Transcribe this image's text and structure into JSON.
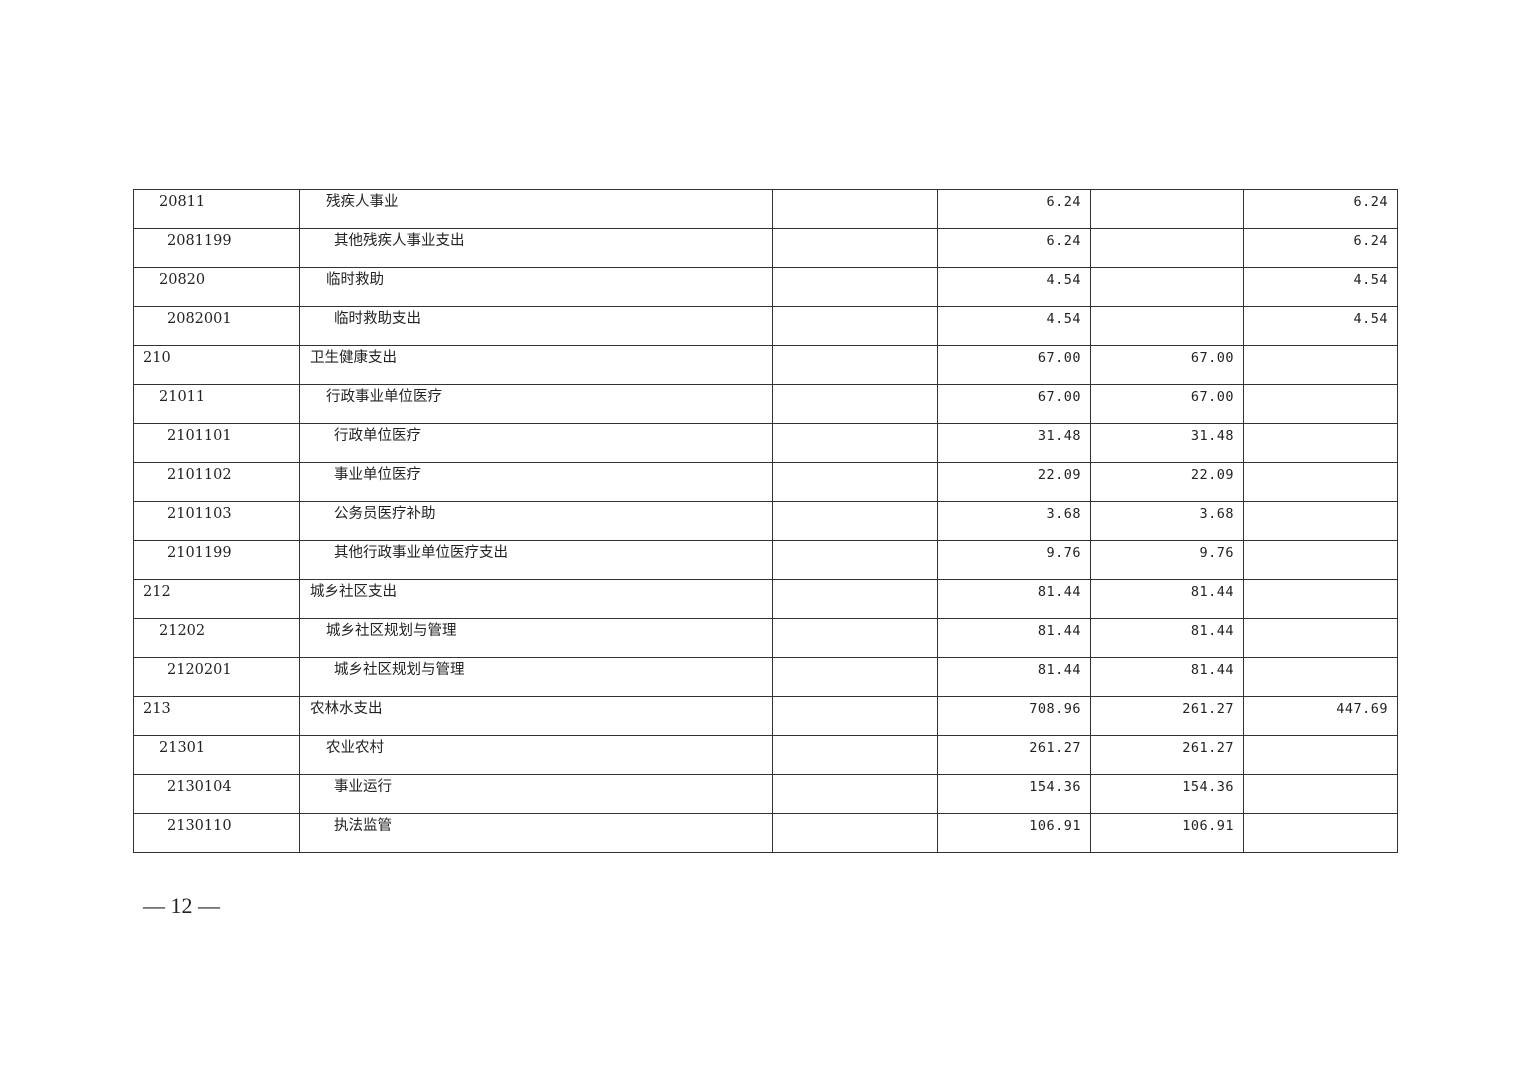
{
  "rows": [
    {
      "level": 2,
      "code": "20811",
      "name": "残疾人事业",
      "c3": "",
      "c4": "6.24",
      "c5": "",
      "c6": "6.24"
    },
    {
      "level": 3,
      "code": "2081199",
      "name": "其他残疾人事业支出",
      "c3": "",
      "c4": "6.24",
      "c5": "",
      "c6": "6.24"
    },
    {
      "level": 2,
      "code": "20820",
      "name": "临时救助",
      "c3": "",
      "c4": "4.54",
      "c5": "",
      "c6": "4.54"
    },
    {
      "level": 3,
      "code": "2082001",
      "name": "临时救助支出",
      "c3": "",
      "c4": "4.54",
      "c5": "",
      "c6": "4.54"
    },
    {
      "level": 1,
      "code": "210",
      "name": "卫生健康支出",
      "c3": "",
      "c4": "67.00",
      "c5": "67.00",
      "c6": ""
    },
    {
      "level": 2,
      "code": "21011",
      "name": "行政事业单位医疗",
      "c3": "",
      "c4": "67.00",
      "c5": "67.00",
      "c6": ""
    },
    {
      "level": 3,
      "code": "2101101",
      "name": "行政单位医疗",
      "c3": "",
      "c4": "31.48",
      "c5": "31.48",
      "c6": ""
    },
    {
      "level": 3,
      "code": "2101102",
      "name": "事业单位医疗",
      "c3": "",
      "c4": "22.09",
      "c5": "22.09",
      "c6": ""
    },
    {
      "level": 3,
      "code": "2101103",
      "name": "公务员医疗补助",
      "c3": "",
      "c4": "3.68",
      "c5": "3.68",
      "c6": ""
    },
    {
      "level": 3,
      "code": "2101199",
      "name": "其他行政事业单位医疗支出",
      "c3": "",
      "c4": "9.76",
      "c5": "9.76",
      "c6": ""
    },
    {
      "level": 1,
      "code": "212",
      "name": "城乡社区支出",
      "c3": "",
      "c4": "81.44",
      "c5": "81.44",
      "c6": ""
    },
    {
      "level": 2,
      "code": "21202",
      "name": "城乡社区规划与管理",
      "c3": "",
      "c4": "81.44",
      "c5": "81.44",
      "c6": ""
    },
    {
      "level": 3,
      "code": "2120201",
      "name": "城乡社区规划与管理",
      "c3": "",
      "c4": "81.44",
      "c5": "81.44",
      "c6": ""
    },
    {
      "level": 1,
      "code": "213",
      "name": "农林水支出",
      "c3": "",
      "c4": "708.96",
      "c5": "261.27",
      "c6": "447.69"
    },
    {
      "level": 2,
      "code": "21301",
      "name": "农业农村",
      "c3": "",
      "c4": "261.27",
      "c5": "261.27",
      "c6": ""
    },
    {
      "level": 3,
      "code": "2130104",
      "name": "事业运行",
      "c3": "",
      "c4": "154.36",
      "c5": "154.36",
      "c6": ""
    },
    {
      "level": 3,
      "code": "2130110",
      "name": "执法监管",
      "c3": "",
      "c4": "106.91",
      "c5": "106.91",
      "c6": ""
    }
  ],
  "page_number": "— 12 —"
}
